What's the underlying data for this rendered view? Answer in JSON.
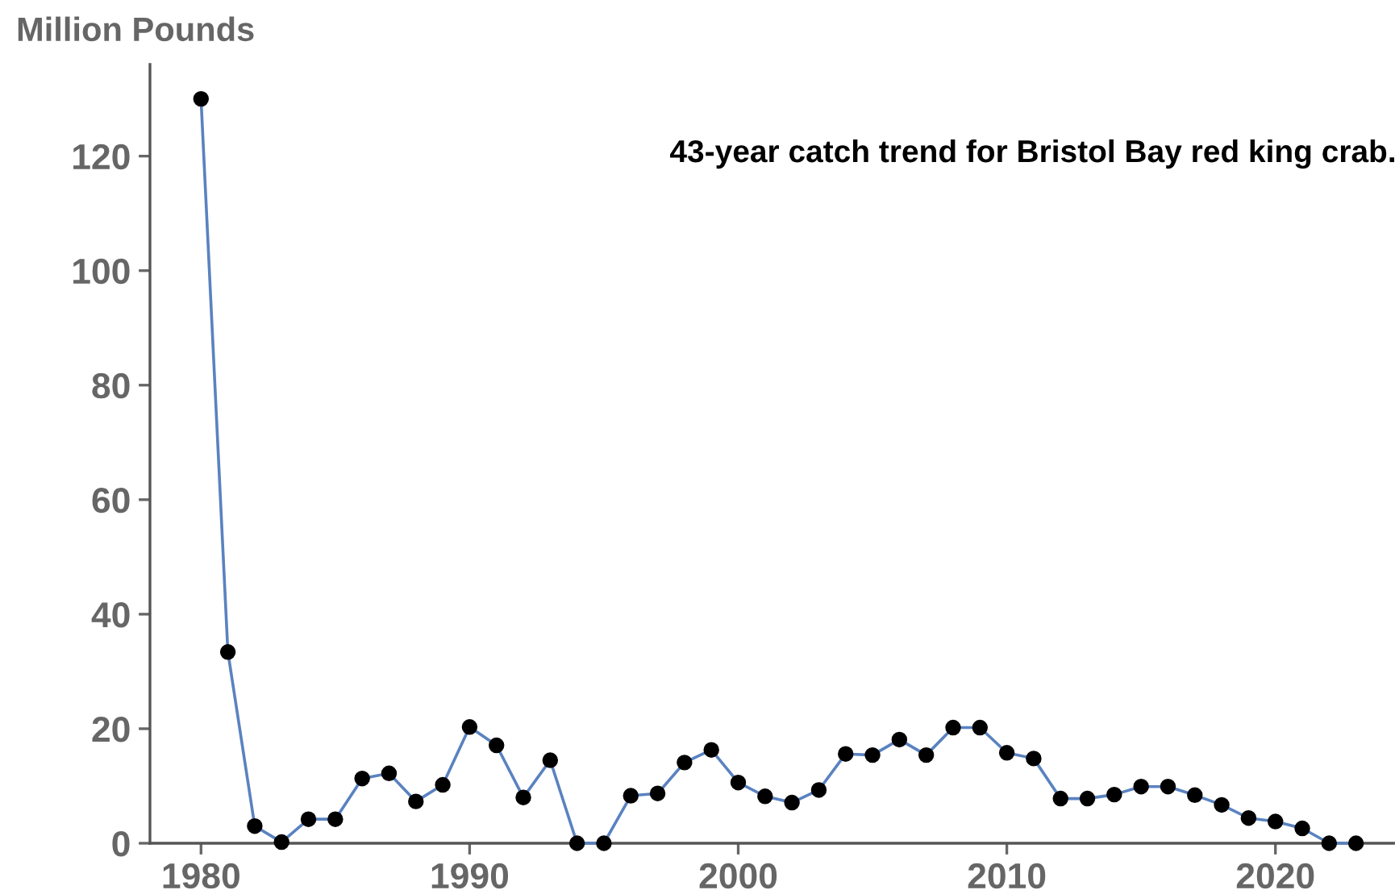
{
  "chart_data": {
    "type": "line",
    "title": "43-year catch trend for Bristol Bay red king crab.",
    "ylabel": "Million Pounds",
    "x": [
      1980,
      1981,
      1982,
      1983,
      1984,
      1985,
      1986,
      1987,
      1988,
      1989,
      1990,
      1991,
      1992,
      1993,
      1994,
      1995,
      1996,
      1997,
      1998,
      1999,
      2000,
      2001,
      2002,
      2003,
      2004,
      2005,
      2006,
      2007,
      2008,
      2009,
      2010,
      2011,
      2012,
      2013,
      2014,
      2015,
      2016,
      2017,
      2018,
      2019,
      2020,
      2021,
      2022,
      2023
    ],
    "series": [
      {
        "color": "#5a82c0",
        "values": [
          130,
          33.4,
          3.0,
          0.2,
          4.2,
          4.2,
          11.3,
          12.2,
          7.3,
          10.2,
          20.3,
          17.1,
          8.0,
          14.5,
          0,
          0,
          8.3,
          8.7,
          14.1,
          16.3,
          10.6,
          8.2,
          7.1,
          9.3,
          15.6,
          15.4,
          18.1,
          15.4,
          20.2,
          20.2,
          15.8,
          14.8,
          7.8,
          7.8,
          8.5,
          9.9,
          9.9,
          8.4,
          6.7,
          4.4,
          3.8,
          2.6,
          0,
          0
        ]
      }
    ],
    "xlim": [
      1978.1,
      2024.4
    ],
    "ylim": [
      0,
      136
    ],
    "xticks": [
      1980,
      1990,
      2000,
      2010,
      2020
    ],
    "yticks": [
      0,
      20,
      40,
      60,
      80,
      100,
      120
    ],
    "marker": "circle",
    "line_style": "solid",
    "grid": false,
    "legend": false
  }
}
